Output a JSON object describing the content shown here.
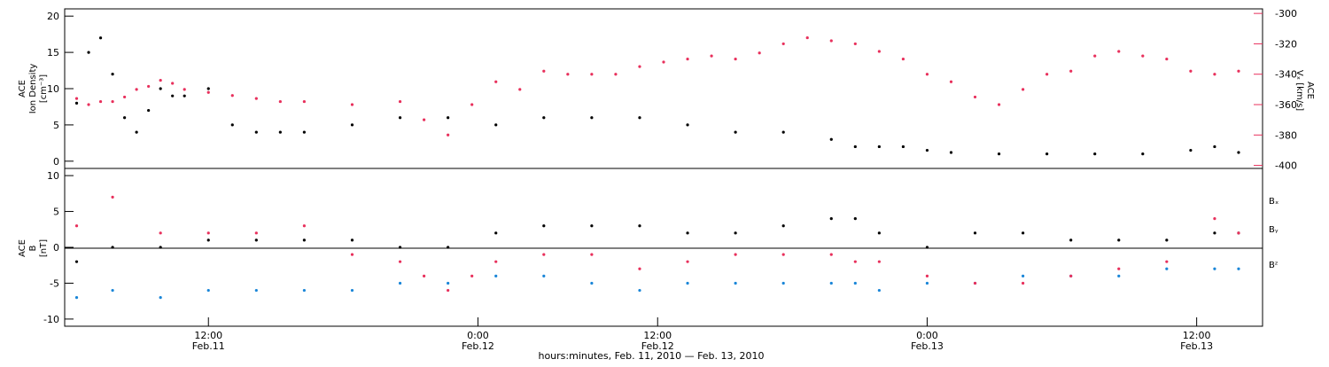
{
  "colors": {
    "black": "#000000",
    "pink": "#e8305c",
    "blue": "#1a86d8"
  },
  "chart_data": [
    {
      "type": "scatter",
      "panel": "top",
      "ylabel_left": [
        "ACE",
        "Ion Density",
        "[cm⁻³]"
      ],
      "ylabel_right": [
        "ACE",
        "Vₓ [km/s]"
      ],
      "ylim_left": [
        -1,
        21
      ],
      "ylim_right": [
        -402,
        -297
      ],
      "yticks_left": [
        "20",
        "15",
        "10",
        "5",
        "0"
      ],
      "yticks_right": [
        "-300",
        "-320",
        "-340",
        "-360",
        "-380",
        "-400"
      ],
      "series": [
        {
          "axis": "left",
          "color": "#000000",
          "x": [
            1,
            2,
            3,
            4,
            5,
            6,
            7,
            8,
            9,
            10,
            12,
            14,
            16,
            18,
            20,
            24,
            28,
            32,
            36,
            40,
            44,
            48,
            52,
            56,
            60,
            64,
            66,
            68,
            70,
            72,
            74,
            78,
            82,
            86,
            90,
            94,
            96,
            98
          ],
          "y": [
            8,
            15,
            17,
            12,
            6,
            4,
            7,
            10,
            9,
            9,
            10,
            5,
            4,
            4,
            4,
            5,
            6,
            6,
            5,
            6,
            6,
            6,
            5,
            4,
            4,
            3,
            2,
            2,
            2,
            1.5,
            1.2,
            1,
            1,
            1,
            1,
            1.5,
            2,
            1.2
          ]
        },
        {
          "axis": "right",
          "color": "#e8305c",
          "x": [
            1,
            2,
            3,
            4,
            5,
            6,
            7,
            8,
            9,
            10,
            12,
            14,
            16,
            18,
            20,
            24,
            28,
            30,
            32,
            34,
            36,
            38,
            40,
            42,
            44,
            46,
            48,
            50,
            52,
            54,
            56,
            58,
            60,
            62,
            64,
            66,
            68,
            70,
            72,
            74,
            76,
            78,
            80,
            82,
            84,
            86,
            88,
            90,
            92,
            94,
            96,
            98
          ],
          "y": [
            -356,
            -360,
            -358,
            -358,
            -355,
            -350,
            -348,
            -344,
            -346,
            -350,
            -352,
            -354,
            -356,
            -358,
            -358,
            -360,
            -358,
            -370,
            -380,
            -360,
            -345,
            -350,
            -338,
            -340,
            -340,
            -340,
            -335,
            -332,
            -330,
            -328,
            -330,
            -326,
            -320,
            -316,
            -318,
            -320,
            -325,
            -330,
            -340,
            -345,
            -355,
            -360,
            -350,
            -340,
            -338,
            -328,
            -325,
            -328,
            -330,
            -338,
            -340,
            -338
          ]
        }
      ]
    },
    {
      "type": "scatter",
      "panel": "bottom",
      "ylabel_left": [
        "ACE",
        "B",
        "[nT]"
      ],
      "ylim": [
        -11,
        11
      ],
      "yticks": [
        "10",
        "5",
        "0",
        "-5",
        "-10"
      ],
      "legend_position": "right",
      "series": [
        {
          "name": "Bx",
          "color": "#000000",
          "x": [
            1,
            4,
            8,
            12,
            16,
            20,
            24,
            28,
            32,
            36,
            40,
            44,
            48,
            52,
            56,
            60,
            64,
            66,
            68,
            72,
            76,
            80,
            84,
            88,
            92,
            96,
            98
          ],
          "y": [
            -2,
            0,
            0,
            1,
            1,
            1,
            1,
            0,
            0,
            2,
            3,
            3,
            3,
            2,
            2,
            3,
            4,
            4,
            2,
            0,
            2,
            2,
            1,
            1,
            1,
            2,
            2
          ]
        },
        {
          "name": "By",
          "color": "#1a86d8",
          "x": [
            1,
            4,
            8,
            12,
            16,
            20,
            24,
            28,
            32,
            36,
            40,
            44,
            48,
            52,
            56,
            60,
            64,
            66,
            68,
            72,
            76,
            80,
            84,
            88,
            92,
            96,
            98
          ],
          "y": [
            -7,
            -6,
            -7,
            -6,
            -6,
            -6,
            -6,
            -5,
            -5,
            -4,
            -4,
            -5,
            -6,
            -5,
            -5,
            -5,
            -5,
            -5,
            -6,
            -5,
            -5,
            -4,
            -4,
            -4,
            -3,
            -3,
            -3
          ]
        },
        {
          "name": "Bz",
          "color": "#e8305c",
          "x": [
            1,
            4,
            8,
            12,
            16,
            20,
            24,
            28,
            30,
            32,
            34,
            36,
            40,
            44,
            48,
            52,
            56,
            60,
            64,
            66,
            68,
            72,
            76,
            80,
            84,
            88,
            92,
            96,
            98
          ],
          "y": [
            3,
            7,
            2,
            2,
            2,
            3,
            -1,
            -2,
            -4,
            -6,
            -4,
            -2,
            -1,
            -1,
            -3,
            -2,
            -1,
            -1,
            -1,
            -2,
            -2,
            -4,
            -5,
            -5,
            -4,
            -3,
            -2,
            4,
            2
          ]
        }
      ]
    }
  ],
  "legend": {
    "bx": "Bₓ",
    "by": "Bᵧ",
    "bz": "Bᶻ"
  },
  "x_ticks": [
    {
      "time": "12:00",
      "date": "Feb.11"
    },
    {
      "time": "0:00",
      "date": "Feb.12"
    },
    {
      "time": "12:00",
      "date": "Feb.12"
    },
    {
      "time": "0:00",
      "date": "Feb.13"
    },
    {
      "time": "12:00",
      "date": "Feb.13"
    }
  ],
  "xlabel": "hours:minutes, Feb. 11, 2010 — Feb. 13, 2010"
}
